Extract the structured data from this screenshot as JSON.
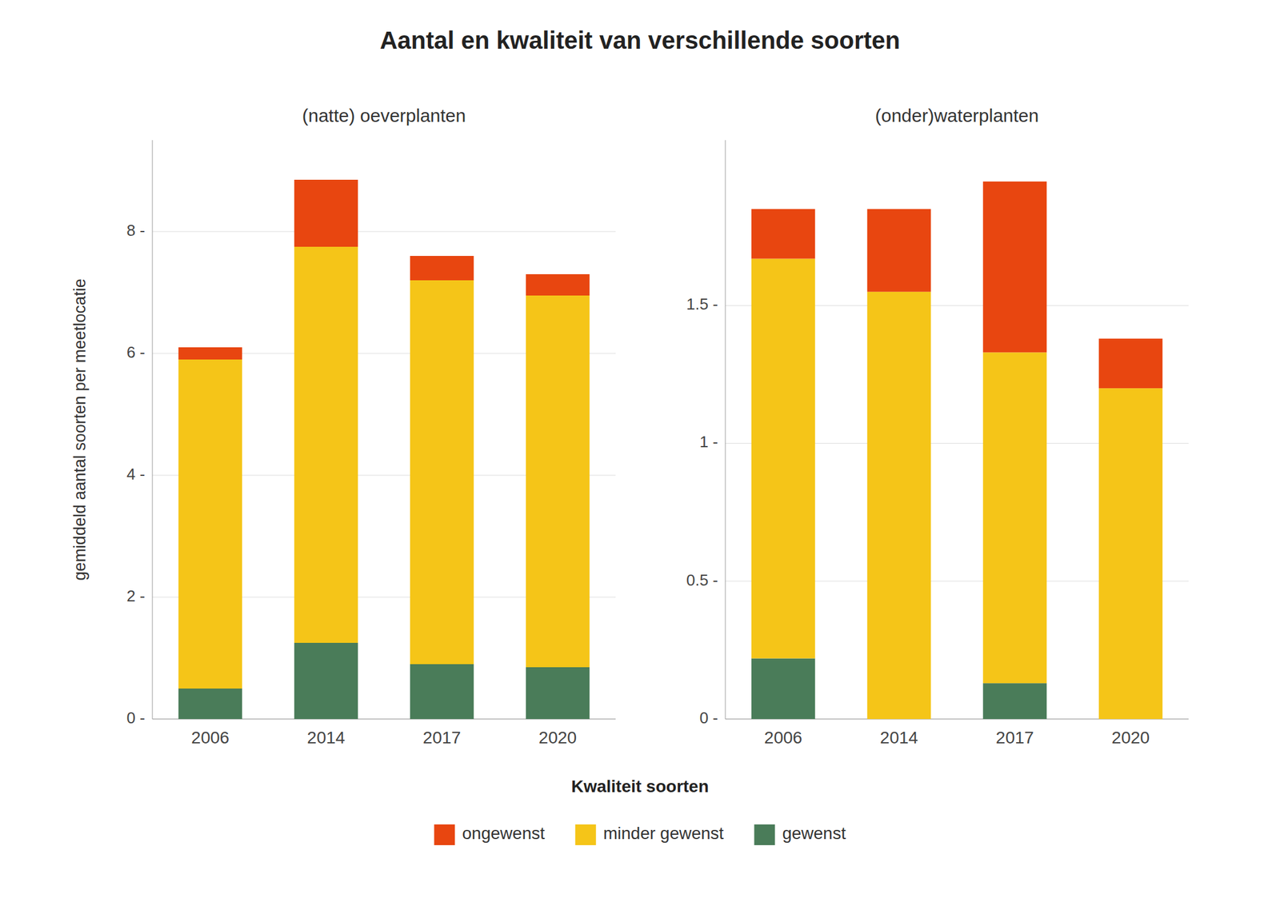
{
  "chart_data": [
    {
      "type": "bar",
      "stacked": true,
      "grid": true,
      "legend": "bottom",
      "title": "Aantal en kwaliteit van verschillende soorten",
      "subtitle": "(natte) oeverplanten",
      "ylabel": "gemiddeld aantal soorten per meetlocatie",
      "legend_title": "Kwaliteit soorten",
      "categories": [
        "2006",
        "2014",
        "2017",
        "2020"
      ],
      "series": [
        {
          "name": "gewenst",
          "color": "#4a7c59",
          "values": [
            0.5,
            1.25,
            0.9,
            0.85
          ]
        },
        {
          "name": "minder gewenst",
          "color": "#f5c518",
          "values": [
            5.4,
            6.5,
            6.3,
            6.1
          ]
        },
        {
          "name": "ongewenst",
          "color": "#e84610",
          "values": [
            0.2,
            1.1,
            0.4,
            0.35
          ]
        }
      ],
      "ylim": [
        0,
        9.5
      ],
      "yticks": [
        {
          "value": 0,
          "label": "0 -"
        },
        {
          "value": 2,
          "label": "2 -"
        },
        {
          "value": 4,
          "label": "4 -"
        },
        {
          "value": 6,
          "label": "6 -"
        },
        {
          "value": 8,
          "label": "8 -"
        }
      ]
    },
    {
      "type": "bar",
      "stacked": true,
      "grid": true,
      "subtitle": "(onder)waterplanten",
      "categories": [
        "2006",
        "2014",
        "2017",
        "2020"
      ],
      "series": [
        {
          "name": "gewenst",
          "color": "#4a7c59",
          "values": [
            0.22,
            0.0,
            0.13,
            0.0
          ]
        },
        {
          "name": "minder gewenst",
          "color": "#f5c518",
          "values": [
            1.45,
            1.55,
            1.2,
            1.2
          ]
        },
        {
          "name": "ongewenst",
          "color": "#e84610",
          "values": [
            0.18,
            0.3,
            0.62,
            0.18
          ]
        }
      ],
      "ylim": [
        0,
        2.1
      ],
      "yticks": [
        {
          "value": 0.0,
          "label": "0 -"
        },
        {
          "value": 0.5,
          "label": "0.5 -"
        },
        {
          "value": 1.0,
          "label": "1 -"
        },
        {
          "value": 1.5,
          "label": "1.5 -"
        }
      ]
    }
  ]
}
